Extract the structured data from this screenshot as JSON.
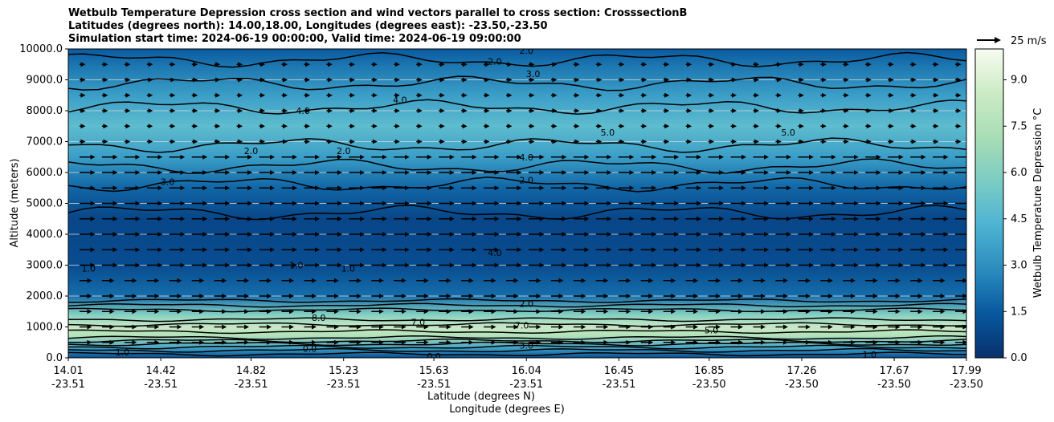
{
  "chart_data": {
    "type": "heatmap",
    "title_lines": [
      "Wetbulb Temperature Depression cross section and wind vectors parallel to cross section: CrosssectionB",
      "Latitudes (degrees north): 14.00,18.00, Longitudes (degrees east): -23.50,-23.50",
      "Simulation start time: 2024-06-19 00:00:00, Valid time: 2024-06-19 09:00:00"
    ],
    "ylabel": "Altitude (meters)",
    "xlabel_lines": [
      "Latitude (degrees N)",
      "Longitude (degrees E)"
    ],
    "ylim": [
      0,
      10000
    ],
    "xlim": [
      14.01,
      17.99
    ],
    "y_ticks": [
      "0.0",
      "1000.0",
      "2000.0",
      "3000.0",
      "4000.0",
      "5000.0",
      "6000.0",
      "7000.0",
      "8000.0",
      "9000.0",
      "10000.0"
    ],
    "y_tick_values": [
      0,
      1000,
      2000,
      3000,
      4000,
      5000,
      6000,
      7000,
      8000,
      9000,
      10000
    ],
    "x_ticks": [
      {
        "lat": "14.01",
        "lon": "-23.51"
      },
      {
        "lat": "14.42",
        "lon": "-23.51"
      },
      {
        "lat": "14.82",
        "lon": "-23.51"
      },
      {
        "lat": "15.23",
        "lon": "-23.51"
      },
      {
        "lat": "15.63",
        "lon": "-23.51"
      },
      {
        "lat": "16.04",
        "lon": "-23.51"
      },
      {
        "lat": "16.45",
        "lon": "-23.51"
      },
      {
        "lat": "16.85",
        "lon": "-23.50"
      },
      {
        "lat": "17.26",
        "lon": "-23.50"
      },
      {
        "lat": "17.67",
        "lon": "-23.50"
      },
      {
        "lat": "17.99",
        "lon": "-23.50"
      }
    ],
    "x_tick_values": [
      14.01,
      14.42,
      14.82,
      15.23,
      15.63,
      16.04,
      16.45,
      16.85,
      17.26,
      17.67,
      17.99
    ],
    "grid": "horizontal",
    "colorbar": {
      "label": "Wetbulb Temperature Depression °C",
      "range": [
        0,
        10
      ],
      "ticks": [
        "0.0",
        "1.5",
        "3.0",
        "4.5",
        "6.0",
        "7.5",
        "9.0"
      ],
      "tick_values": [
        0,
        1.5,
        3,
        4.5,
        6,
        7.5,
        9
      ],
      "colormap": "GnBu_r",
      "colors": [
        "#08306b",
        "#08589e",
        "#2b8cbe",
        "#4eb3d3",
        "#7bccc4",
        "#a8ddb5",
        "#ccebc5",
        "#f7fcf0"
      ]
    },
    "wind_key": "25 m/s",
    "depression_profile": [
      {
        "altitude": 0,
        "value": 1.0
      },
      {
        "altitude": 300,
        "value": 3.5
      },
      {
        "altitude": 700,
        "value": 7.5
      },
      {
        "altitude": 1000,
        "value": 8.5
      },
      {
        "altitude": 1400,
        "value": 6.0
      },
      {
        "altitude": 2000,
        "value": 2.0
      },
      {
        "altitude": 3000,
        "value": 1.0
      },
      {
        "altitude": 4500,
        "value": 0.8
      },
      {
        "altitude": 5500,
        "value": 1.8
      },
      {
        "altitude": 6500,
        "value": 3.5
      },
      {
        "altitude": 7500,
        "value": 4.8
      },
      {
        "altitude": 8500,
        "value": 3.5
      },
      {
        "altitude": 9500,
        "value": 2.2
      },
      {
        "altitude": 10000,
        "value": 1.5
      }
    ],
    "contour_labels": [
      {
        "text": "2.0",
        "lat": 15.9,
        "alt": 9600
      },
      {
        "text": "2.0",
        "lat": 16.04,
        "alt": 9950
      },
      {
        "text": "3.0",
        "lat": 16.07,
        "alt": 9200
      },
      {
        "text": "4.0",
        "lat": 15.48,
        "alt": 8350
      },
      {
        "text": "4.0",
        "lat": 15.05,
        "alt": 8000
      },
      {
        "text": "5.0",
        "lat": 16.4,
        "alt": 7300
      },
      {
        "text": "5.0",
        "lat": 17.2,
        "alt": 7300
      },
      {
        "text": "4.0",
        "lat": 16.04,
        "alt": 6500
      },
      {
        "text": "2.0",
        "lat": 14.82,
        "alt": 6700
      },
      {
        "text": "2.0",
        "lat": 15.23,
        "alt": 6700
      },
      {
        "text": "3.0",
        "lat": 14.45,
        "alt": 5700
      },
      {
        "text": "2.0",
        "lat": 16.04,
        "alt": 5750
      },
      {
        "text": "1.0",
        "lat": 15.02,
        "alt": 3000
      },
      {
        "text": "1.0",
        "lat": 15.25,
        "alt": 2900
      },
      {
        "text": "4.0",
        "lat": 15.9,
        "alt": 3400
      },
      {
        "text": "1.0",
        "lat": 14.1,
        "alt": 2900
      },
      {
        "text": "2.0",
        "lat": 16.04,
        "alt": 1750
      },
      {
        "text": "8.0",
        "lat": 15.12,
        "alt": 1300
      },
      {
        "text": "7.0",
        "lat": 15.56,
        "alt": 1150
      },
      {
        "text": "7.0",
        "lat": 16.02,
        "alt": 1050
      },
      {
        "text": "5.0",
        "lat": 16.86,
        "alt": 900
      },
      {
        "text": "3.0",
        "lat": 16.04,
        "alt": 400
      },
      {
        "text": "0.0",
        "lat": 15.08,
        "alt": 300
      },
      {
        "text": "1.0",
        "lat": 14.25,
        "alt": 180
      },
      {
        "text": "1.0",
        "lat": 17.56,
        "alt": 100
      },
      {
        "text": "0.0",
        "lat": 15.63,
        "alt": 50
      }
    ]
  }
}
